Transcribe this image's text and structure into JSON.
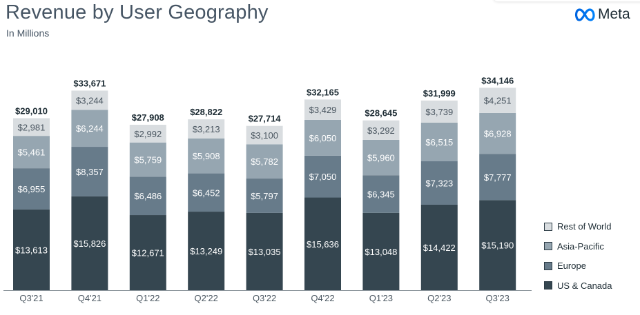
{
  "header": {
    "title": "Revenue by User Geography",
    "subtitle": "In Millions",
    "logo_text": "Meta"
  },
  "colors": {
    "us_canada": "#354650",
    "europe": "#677b8a",
    "asia_pacific": "#96a6b1",
    "rest_of_world": "#d9dde0",
    "axis": "#8a939a",
    "total_label": "#1c2b33"
  },
  "chart_data": {
    "type": "bar",
    "stacked": true,
    "title": "Revenue by User Geography",
    "subtitle": "In Millions",
    "categories": [
      "Q3'21",
      "Q4'21",
      "Q1'22",
      "Q2'22",
      "Q3'22",
      "Q4'22",
      "Q1'23",
      "Q2'23",
      "Q3'23"
    ],
    "series": [
      {
        "name": "US & Canada",
        "values": [
          13613,
          15826,
          12671,
          13249,
          13035,
          15636,
          13048,
          14422,
          15190
        ],
        "labels": [
          "$13,613",
          "$15,826",
          "$12,671",
          "$13,249",
          "$13,035",
          "$15,636",
          "$13,048",
          "$14,422",
          "$15,190"
        ],
        "color": "#354650"
      },
      {
        "name": "Europe",
        "values": [
          6955,
          8357,
          6486,
          6452,
          5797,
          7050,
          6345,
          7323,
          7777
        ],
        "labels": [
          "$6,955",
          "$8,357",
          "$6,486",
          "$6,452",
          "$5,797",
          "$7,050",
          "$6,345",
          "$7,323",
          "$7,777"
        ],
        "color": "#677b8a"
      },
      {
        "name": "Asia-Pacific",
        "values": [
          5461,
          6244,
          5759,
          5908,
          5782,
          6050,
          5960,
          6515,
          6928
        ],
        "labels": [
          "$5,461",
          "$6,244",
          "$5,759",
          "$5,908",
          "$5,782",
          "$6,050",
          "$5,960",
          "$6,515",
          "$6,928"
        ],
        "color": "#96a6b1"
      },
      {
        "name": "Rest of World",
        "values": [
          2981,
          3244,
          2992,
          3213,
          3100,
          3429,
          3292,
          3739,
          4251
        ],
        "labels": [
          "$2,981",
          "$3,244",
          "$2,992",
          "$3,213",
          "$3,100",
          "$3,429",
          "$3,292",
          "$3,739",
          "$4,251"
        ],
        "color": "#d9dde0"
      }
    ],
    "totals": [
      29010,
      33671,
      27908,
      28822,
      27714,
      32165,
      28645,
      31999,
      34146
    ],
    "total_labels": [
      "$29,010",
      "$33,671",
      "$27,908",
      "$28,822",
      "$27,714",
      "$32,165",
      "$28,645",
      "$31,999",
      "$34,146"
    ],
    "legend": [
      {
        "label": "Rest of World",
        "color": "#d9dde0"
      },
      {
        "label": "Asia-Pacific",
        "color": "#96a6b1"
      },
      {
        "label": "Europe",
        "color": "#677b8a"
      },
      {
        "label": "US & Canada",
        "color": "#354650"
      }
    ],
    "legend_position": "right",
    "ylim": [
      0,
      34146
    ],
    "grid": false
  }
}
